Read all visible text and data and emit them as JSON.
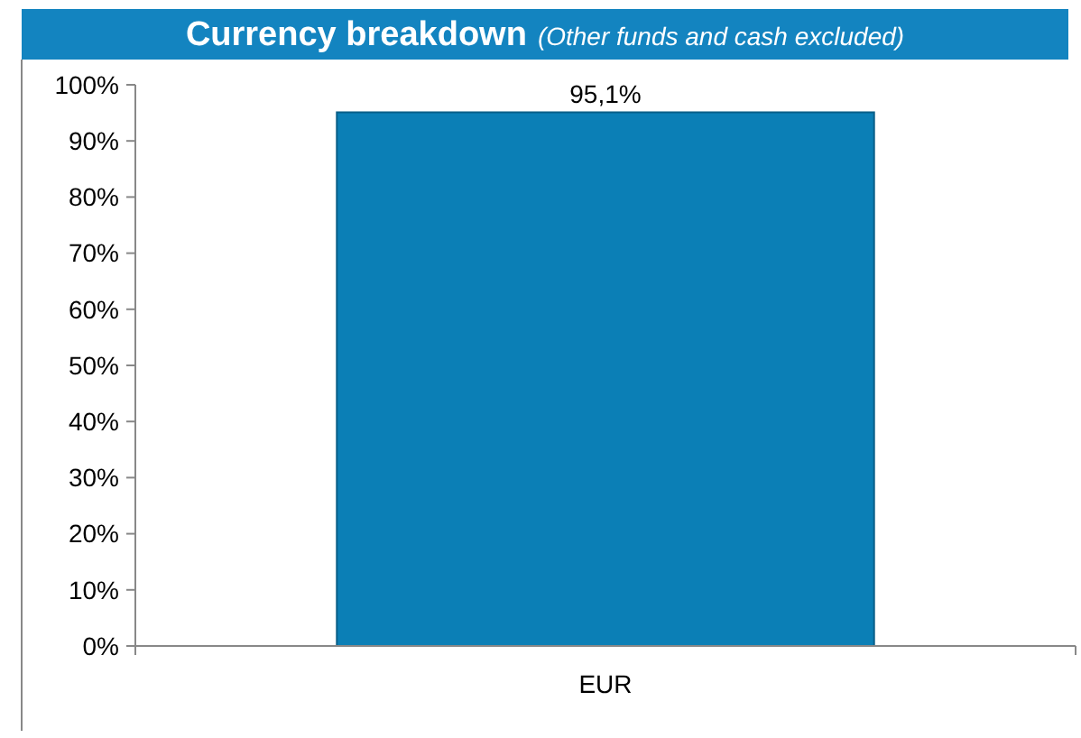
{
  "chart_data": {
    "type": "bar",
    "title": "Currency breakdown",
    "subtitle": "(Other funds and cash excluded)",
    "categories": [
      "EUR"
    ],
    "values": [
      95.1
    ],
    "value_labels": [
      "95,1%"
    ],
    "color": "#0b7fb6",
    "ylim": [
      0,
      100
    ],
    "yticks": [
      {
        "value": 0,
        "label": "0%"
      },
      {
        "value": 10,
        "label": "10%"
      },
      {
        "value": 20,
        "label": "20%"
      },
      {
        "value": 30,
        "label": "30%"
      },
      {
        "value": 40,
        "label": "40%"
      },
      {
        "value": 50,
        "label": "50%"
      },
      {
        "value": 60,
        "label": "60%"
      },
      {
        "value": 70,
        "label": "70%"
      },
      {
        "value": 80,
        "label": "80%"
      },
      {
        "value": 90,
        "label": "90%"
      },
      {
        "value": 100,
        "label": "100%"
      }
    ],
    "grid": false
  }
}
